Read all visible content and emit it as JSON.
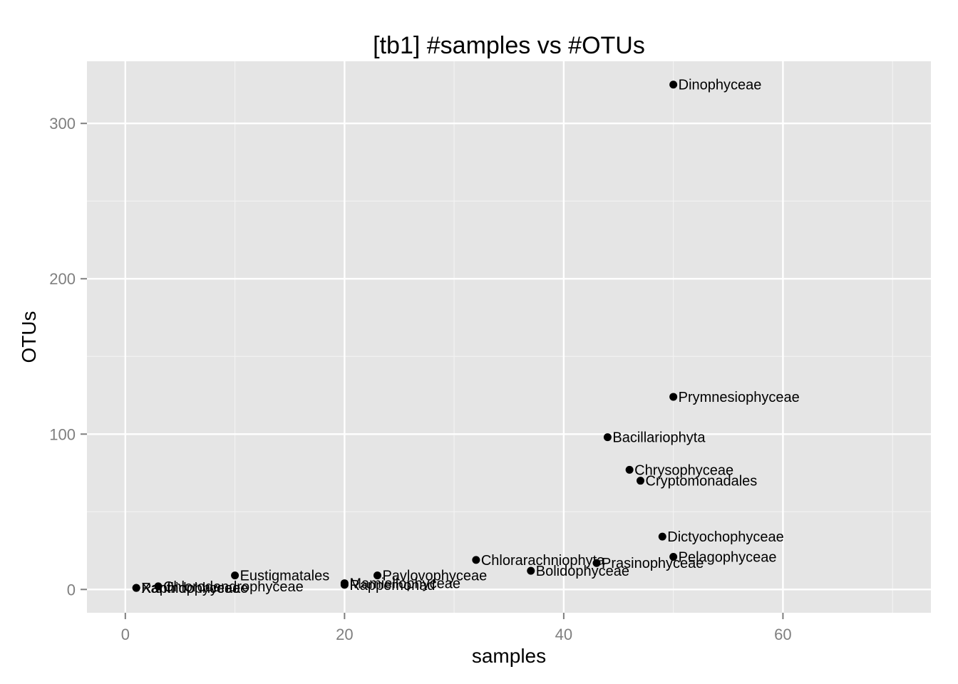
{
  "chart_data": {
    "type": "scatter",
    "title": "[tb1] #samples vs #OTUs",
    "xlabel": "samples",
    "ylabel": "OTUs",
    "xlim": [
      -3.5,
      73.5
    ],
    "ylim": [
      -15,
      340
    ],
    "xticks": [
      0,
      20,
      40,
      60
    ],
    "yticks": [
      0,
      100,
      200,
      300
    ],
    "grid": true,
    "legend": "none",
    "colors": {
      "panel": "#e5e5e5",
      "grid_major": "#ffffff",
      "grid_minor": "#f2f2f2",
      "point": "#000000",
      "tick_text": "#7f7f7f"
    },
    "points": [
      {
        "label": "Dinophyceae",
        "x": 50,
        "y": 325
      },
      {
        "label": "Prymnesiophyceae",
        "x": 50,
        "y": 124
      },
      {
        "label": "Bacillariophyta",
        "x": 44,
        "y": 98
      },
      {
        "label": "Chrysophyceae",
        "x": 46,
        "y": 77
      },
      {
        "label": "Cryptomonadales",
        "x": 47,
        "y": 70
      },
      {
        "label": "Dictyochophyceae",
        "x": 49,
        "y": 34
      },
      {
        "label": "Pelagophyceae",
        "x": 50,
        "y": 21
      },
      {
        "label": "Prasinophyceae",
        "x": 43,
        "y": 17
      },
      {
        "label": "Bolidophyceae",
        "x": 37,
        "y": 12
      },
      {
        "label": "Chlorarachniophyta",
        "x": 32,
        "y": 19
      },
      {
        "label": "Pavlovophyceae",
        "x": 23,
        "y": 9
      },
      {
        "label": "Mamiellophyceae",
        "x": 20,
        "y": 4
      },
      {
        "label": "Rappemonad",
        "x": 20,
        "y": 3
      },
      {
        "label": "Eustigmatales",
        "x": 10,
        "y": 9
      },
      {
        "label": "Chlorodendrophyceae",
        "x": 3,
        "y": 2
      },
      {
        "label": "Raphidophyceae",
        "x": 1,
        "y": 1
      },
      {
        "label": "Xanthophyceae",
        "x": 1,
        "y": 1
      }
    ]
  }
}
